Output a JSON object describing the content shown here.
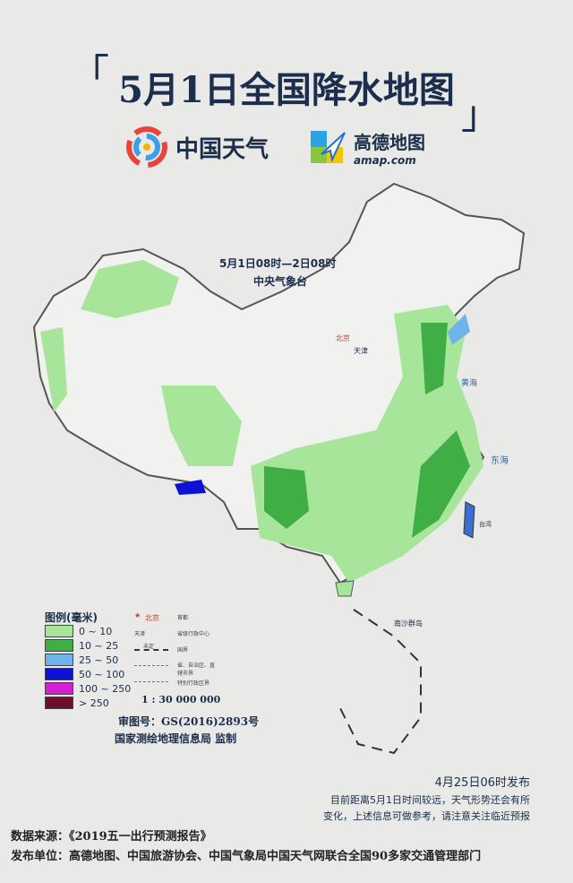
{
  "title": "5月1日全国降水地图",
  "logos": {
    "weather_cn": "中国天气",
    "amap": "高德地图",
    "amap_url": "amap.com"
  },
  "map": {
    "time_range": "5月1日08时—2日08时",
    "issuer": "中央气象台",
    "labels": {
      "east_sea": "东海",
      "yellow_sea": "黄海",
      "taiwan": "台湾",
      "south_sea_islands": "南沙群岛",
      "beijing": "北京",
      "tianjin": "天津"
    }
  },
  "legend": {
    "title": "图例(毫米)",
    "items": [
      {
        "range": "0 ~ 10",
        "color": "#a6e59a"
      },
      {
        "range": "10 ~ 25",
        "color": "#3fae44"
      },
      {
        "range": "25 ~ 50",
        "color": "#6cb4ea"
      },
      {
        "range": "50 ~ 100",
        "color": "#0d12d6"
      },
      {
        "range": "100 ~ 250",
        "color": "#d51ed6"
      },
      {
        "range": "> 250",
        "color": "#6e0f2e"
      }
    ],
    "symbols": [
      {
        "sample": "北京",
        "desc": "首都"
      },
      {
        "sample": "天津",
        "desc": "省级行政中心"
      },
      {
        "sample": "未定",
        "desc": "国界"
      },
      {
        "sample": "",
        "desc": "省、自治区、直辖市界"
      },
      {
        "sample": "",
        "desc": "特别行政区界"
      }
    ],
    "scale": "1 : 30 000 000"
  },
  "approval": {
    "number": "审图号：GS(2016)2893号",
    "agency": "国家测绘地理信息局 监制"
  },
  "release": {
    "time": "4月25日06时发布",
    "note_line1": "目前距离5月1日时间较远，天气形势还会有所",
    "note_line2": "变化，上述信息可做参考，请注意关注临近预报"
  },
  "footer": {
    "source": "数据来源：《2019五一出行预测报告》",
    "publisher": "发布单位：高德地图、中国旅游协会、中国气象局中国天气网联合全国90多家交通管理部门"
  }
}
